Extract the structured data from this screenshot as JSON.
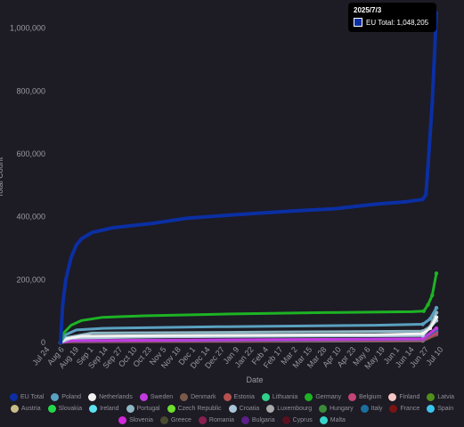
{
  "chart_data": {
    "type": "line",
    "xlabel": "Date",
    "ylabel": "Total Count",
    "ylim": [
      0,
      1050000
    ],
    "y_ticks": [
      "0",
      "200,000",
      "400,000",
      "600,000",
      "800,000",
      "1,000,000"
    ],
    "y_tick_values": [
      0,
      200000,
      400000,
      600000,
      800000,
      1000000
    ],
    "x_ticks": [
      "Jul 24",
      "Aug 6",
      "Aug 19",
      "Sep 1",
      "Sep 14",
      "Sep 27",
      "Oct 10",
      "Oct 23",
      "Nov 5",
      "Nov 18",
      "Dec 1",
      "Dec 14",
      "Dec 27",
      "Jan 9",
      "Jan 22",
      "Feb 4",
      "Feb 17",
      "Mar 2",
      "Mar 15",
      "Mar 28",
      "Apr 10",
      "Apr 23",
      "May 6",
      "May 19",
      "Jun 1",
      "Jun 14",
      "Jun 27",
      "Jul 10"
    ],
    "grid": false,
    "legend_position": "bottom",
    "series": [
      {
        "name": "EU Total",
        "color": "#0b2fa3",
        "values": [
          [
            0,
            0
          ],
          [
            2,
            120000
          ],
          [
            5,
            200000
          ],
          [
            10,
            270000
          ],
          [
            15,
            310000
          ],
          [
            20,
            330000
          ],
          [
            30,
            350000
          ],
          [
            50,
            365000
          ],
          [
            90,
            380000
          ],
          [
            120,
            395000
          ],
          [
            160,
            405000
          ],
          [
            220,
            418000
          ],
          [
            260,
            425000
          ],
          [
            300,
            440000
          ],
          [
            330,
            448000
          ],
          [
            338,
            452000
          ],
          [
            345,
            455000
          ],
          [
            348,
            470000
          ],
          [
            350,
            560000
          ],
          [
            352,
            660000
          ],
          [
            354,
            760000
          ],
          [
            356,
            900000
          ],
          [
            358,
            1048205
          ]
        ]
      },
      {
        "name": "Germany",
        "color": "#1db324",
        "values": [
          [
            0,
            0
          ],
          [
            3,
            30000
          ],
          [
            10,
            55000
          ],
          [
            20,
            70000
          ],
          [
            40,
            80000
          ],
          [
            80,
            85000
          ],
          [
            150,
            90000
          ],
          [
            250,
            95000
          ],
          [
            335,
            98000
          ],
          [
            346,
            100000
          ],
          [
            350,
            120000
          ],
          [
            354,
            150000
          ],
          [
            358,
            220000
          ]
        ]
      },
      {
        "name": "Poland",
        "color": "#5aa1c0",
        "values": [
          [
            0,
            0
          ],
          [
            5,
            25000
          ],
          [
            15,
            40000
          ],
          [
            40,
            45000
          ],
          [
            150,
            50000
          ],
          [
            300,
            55000
          ],
          [
            345,
            58000
          ],
          [
            352,
            75000
          ],
          [
            358,
            110000
          ]
        ]
      },
      {
        "name": "Netherlands",
        "color": "#f2f2f2",
        "values": [
          [
            0,
            0
          ],
          [
            5,
            12000
          ],
          [
            20,
            20000
          ],
          [
            100,
            22000
          ],
          [
            300,
            25000
          ],
          [
            345,
            28000
          ],
          [
            352,
            45000
          ],
          [
            358,
            80000
          ]
        ]
      },
      {
        "name": "Portugal",
        "color": "#8fb7c4",
        "values": [
          [
            0,
            0
          ],
          [
            5,
            15000
          ],
          [
            30,
            30000
          ],
          [
            200,
            33000
          ],
          [
            345,
            36000
          ],
          [
            352,
            50000
          ],
          [
            358,
            95000
          ]
        ]
      },
      {
        "name": "Croatia",
        "color": "#a8c6d8",
        "values": [
          [
            0,
            0
          ],
          [
            10,
            14000
          ],
          [
            100,
            18000
          ],
          [
            345,
            22000
          ],
          [
            358,
            70000
          ]
        ]
      },
      {
        "name": "Sweden",
        "color": "#c33ae0",
        "values": [
          [
            0,
            0
          ],
          [
            10,
            6000
          ],
          [
            200,
            9000
          ],
          [
            345,
            12000
          ],
          [
            358,
            45000
          ]
        ]
      },
      {
        "name": "Italy",
        "color": "#1c6e9e",
        "values": [
          [
            0,
            0
          ],
          [
            10,
            5000
          ],
          [
            200,
            8000
          ],
          [
            345,
            11000
          ],
          [
            358,
            40000
          ]
        ]
      },
      {
        "name": "Belgium",
        "color": "#c34477",
        "values": [
          [
            0,
            0
          ],
          [
            10,
            3000
          ],
          [
            345,
            8000
          ],
          [
            358,
            30000
          ]
        ]
      },
      {
        "name": "Spain",
        "color": "#3cc4ea",
        "values": [
          [
            0,
            0
          ],
          [
            10,
            4000
          ],
          [
            345,
            7000
          ],
          [
            358,
            35000
          ]
        ]
      },
      {
        "name": "Denmark",
        "color": "#7a5a48",
        "values": [
          [
            0,
            0
          ],
          [
            10,
            2000
          ],
          [
            345,
            5000
          ],
          [
            358,
            25000
          ]
        ]
      }
    ],
    "legend": [
      {
        "name": "EU Total",
        "color": "#0b2fa3"
      },
      {
        "name": "Poland",
        "color": "#5aa1c0"
      },
      {
        "name": "Netherlands",
        "color": "#f2f2f2"
      },
      {
        "name": "Sweden",
        "color": "#c33ae0"
      },
      {
        "name": "Denmark",
        "color": "#7a5a48"
      },
      {
        "name": "Estonia",
        "color": "#b5514f"
      },
      {
        "name": "Lithuania",
        "color": "#2fd08a"
      },
      {
        "name": "Germany",
        "color": "#1db324"
      },
      {
        "name": "Belgium",
        "color": "#c34477"
      },
      {
        "name": "Finland",
        "color": "#f4c7c4"
      },
      {
        "name": "Latvia",
        "color": "#4f8f1b"
      },
      {
        "name": "Austria",
        "color": "#c9bc86"
      },
      {
        "name": "Slovakia",
        "color": "#25d84a"
      },
      {
        "name": "Ireland",
        "color": "#5ee0ef"
      },
      {
        "name": "Portugal",
        "color": "#8fb7c4"
      },
      {
        "name": "Czech Republic",
        "color": "#6ee02c"
      },
      {
        "name": "Croatia",
        "color": "#a8c6d8"
      },
      {
        "name": "Luxembourg",
        "color": "#a9a9a9"
      },
      {
        "name": "Hungary",
        "color": "#3a8a3a"
      },
      {
        "name": "Italy",
        "color": "#1c6e9e"
      },
      {
        "name": "France",
        "color": "#7a1414"
      },
      {
        "name": "Spain",
        "color": "#3cc4ea"
      },
      {
        "name": "Slovenia",
        "color": "#d228d8"
      },
      {
        "name": "Greece",
        "color": "#4a4a30"
      },
      {
        "name": "Romania",
        "color": "#8a1f4f"
      },
      {
        "name": "Bulgaria",
        "color": "#5c1f8a"
      },
      {
        "name": "Cyprus",
        "color": "#5a1020"
      },
      {
        "name": "Malta",
        "color": "#35d4c8"
      }
    ]
  },
  "tooltip": {
    "title": "2025/7/3",
    "label": "EU Total: 1,048,205"
  }
}
